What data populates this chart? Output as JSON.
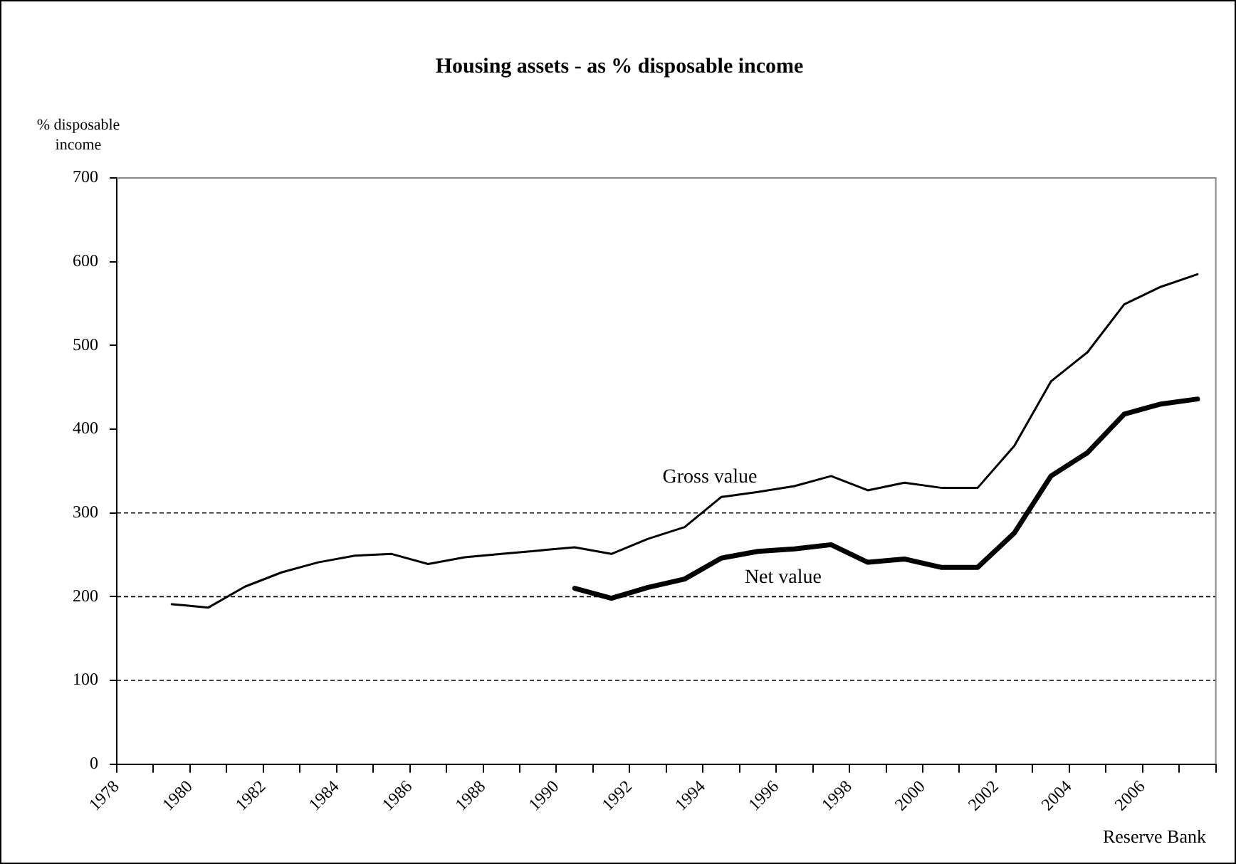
{
  "chart_data": {
    "type": "line",
    "title": "Housing assets - as % disposable income",
    "ylabel": "% disposable income",
    "annotations": [
      "Reserve Bank"
    ],
    "series": [
      {
        "name": "Gross value",
        "color": "#000000",
        "x": [
          1979.5,
          1980.5,
          1981.5,
          1982.5,
          1983.5,
          1984.5,
          1985.5,
          1986.5,
          1987.5,
          1988.5,
          1989.5,
          1990.5,
          1991.5,
          1992.5,
          1993.5,
          1994.5,
          1995.5,
          1996.5,
          1997.5,
          1998.5,
          1999.5,
          2000.5,
          2001.5,
          2002.5,
          2003.5,
          2004.5,
          2005.5,
          2006.5,
          2007.5
        ],
        "values": [
          191,
          187,
          212,
          229,
          241,
          249,
          251,
          239,
          247,
          251,
          255,
          259,
          251,
          269,
          283,
          319,
          325,
          332,
          344,
          327,
          336,
          330,
          330,
          380,
          457,
          492,
          549,
          570,
          585
        ]
      },
      {
        "name": "Net value",
        "color": "#000000",
        "x": [
          1990.5,
          1991.5,
          1992.5,
          1993.5,
          1994.5,
          1995.5,
          1996.5,
          1997.5,
          1998.5,
          1999.5,
          2000.5,
          2001.5,
          2002.5,
          2003.5,
          2004.5,
          2005.5,
          2006.5,
          2007.5
        ],
        "values": [
          210,
          198,
          211,
          221,
          246,
          254,
          257,
          262,
          241,
          245,
          235,
          235,
          276,
          344,
          372,
          418,
          430,
          436
        ]
      }
    ],
    "xlim": [
      1978,
      2008
    ],
    "xticks": [
      1978,
      {
        "value": 1979,
        "label": null
      },
      1980,
      {
        "value": 1981,
        "label": null
      },
      1982,
      {
        "value": 1983,
        "label": null
      },
      1984,
      {
        "value": 1985,
        "label": null
      },
      1986,
      {
        "value": 1987,
        "label": null
      },
      1988,
      {
        "value": 1989,
        "label": null
      },
      1990,
      {
        "value": 1991,
        "label": null
      },
      1992,
      {
        "value": 1993,
        "label": null
      },
      1994,
      {
        "value": 1995,
        "label": null
      },
      1996,
      {
        "value": 1997,
        "label": null
      },
      1998,
      {
        "value": 1999,
        "label": null
      },
      2000,
      {
        "value": 2001,
        "label": null
      },
      2002,
      {
        "value": 2003,
        "label": null
      },
      2004,
      {
        "value": 2005,
        "label": null
      },
      2006,
      {
        "value": 2007,
        "label": null
      },
      {
        "value": 2008,
        "label": null
      }
    ],
    "ylim": [
      0,
      700
    ],
    "yticks": [
      0,
      100,
      200,
      300,
      400,
      500,
      600,
      700
    ],
    "ref_lines": [
      {
        "axis": "y",
        "value": 100,
        "color": "#000000",
        "line_style": "dashed"
      },
      {
        "axis": "y",
        "value": 200,
        "color": "#000000",
        "line_style": "dashed"
      },
      {
        "axis": "y",
        "value": 300,
        "color": "#000000",
        "line_style": "dashed"
      }
    ],
    "grid": false,
    "legend": false,
    "marker": "none",
    "line_style": "solid"
  }
}
